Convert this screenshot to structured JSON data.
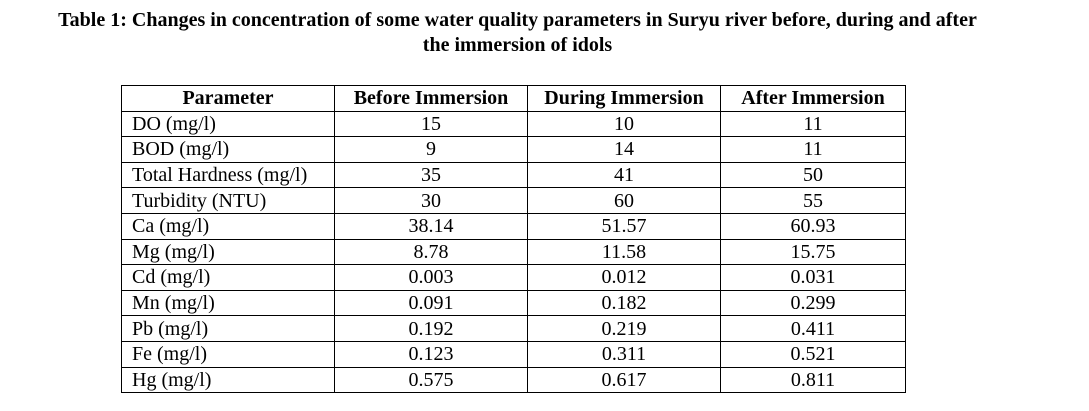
{
  "caption": {
    "line1": "Table 1: Changes in concentration of some water quality parameters in Suryu river before, during and after",
    "line2": "the immersion of idols"
  },
  "table": {
    "headers": [
      "Parameter",
      "Before Immersion",
      "During Immersion",
      "After Immersion"
    ],
    "rows": [
      [
        "DO (mg/l)",
        "15",
        "10",
        "11"
      ],
      [
        "BOD (mg/l)",
        "9",
        "14",
        "11"
      ],
      [
        "Total Hardness (mg/l)",
        "35",
        "41",
        "50"
      ],
      [
        "Turbidity (NTU)",
        "30",
        "60",
        "55"
      ],
      [
        "Ca (mg/l)",
        "38.14",
        "51.57",
        "60.93"
      ],
      [
        "Mg (mg/l)",
        "8.78",
        "11.58",
        "15.75"
      ],
      [
        "Cd (mg/l)",
        "0.003",
        "0.012",
        "0.031"
      ],
      [
        "Mn (mg/l)",
        "0.091",
        "0.182",
        "0.299"
      ],
      [
        "Pb (mg/l)",
        "0.192",
        "0.219",
        "0.411"
      ],
      [
        "Fe (mg/l)",
        "0.123",
        "0.311",
        "0.521"
      ],
      [
        "Hg (mg/l)",
        "0.575",
        "0.617",
        "0.811"
      ]
    ]
  }
}
